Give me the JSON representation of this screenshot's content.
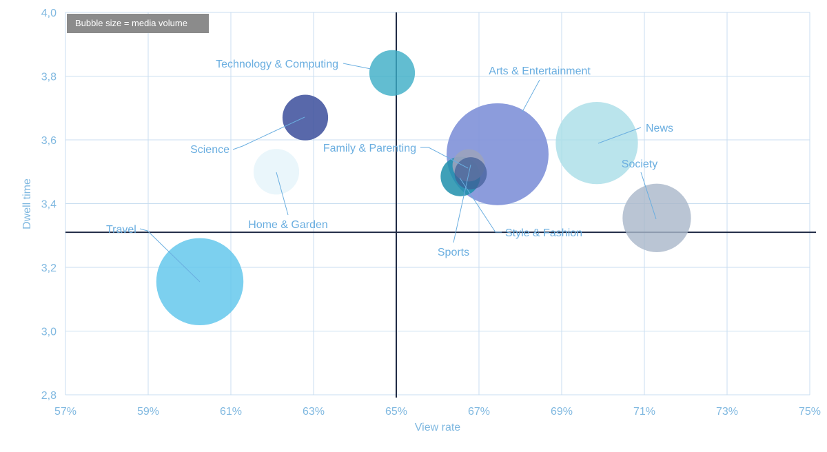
{
  "note": "Bubble size = media volume",
  "chart_data": {
    "type": "scatter",
    "xlabel": "View rate",
    "ylabel": "Dwell time",
    "xlim": [
      57,
      75
    ],
    "ylim": [
      2.8,
      4.0
    ],
    "x_ticks": [
      "57%",
      "59%",
      "61%",
      "63%",
      "65%",
      "67%",
      "69%",
      "71%",
      "73%",
      "75%"
    ],
    "y_ticks": [
      "2,8",
      "3,0",
      "3,2",
      "3,4",
      "3,6",
      "3,8",
      "4,0"
    ],
    "crosshair": {
      "x": 65,
      "y": 3.31
    },
    "grid": true,
    "series": [
      {
        "name": "Arts & Entertainment",
        "x": 67.45,
        "y": 3.555,
        "size": 1.0,
        "color": "#8294d9",
        "opacity": 0.92
      },
      {
        "name": "News",
        "x": 69.85,
        "y": 3.59,
        "size": 0.65,
        "color": "#a9dde7",
        "opacity": 0.8
      },
      {
        "name": "Society",
        "x": 71.3,
        "y": 3.355,
        "size": 0.45,
        "color": "#a9b6c9",
        "opacity": 0.8
      },
      {
        "name": "Travel",
        "x": 60.25,
        "y": 3.155,
        "size": 0.73,
        "color": "#5fc6ec",
        "opacity": 0.82
      },
      {
        "name": "Technology & Computing",
        "x": 64.9,
        "y": 3.81,
        "size": 0.2,
        "color": "#3badc6",
        "opacity": 0.8
      },
      {
        "name": "Science",
        "x": 62.8,
        "y": 3.67,
        "size": 0.2,
        "color": "#3b4d9b",
        "opacity": 0.85
      },
      {
        "name": "Home & Garden",
        "x": 62.1,
        "y": 3.5,
        "size": 0.2,
        "color": "#dcf0f8",
        "opacity": 0.6
      },
      {
        "name": "Family & Parenting",
        "x": 66.75,
        "y": 3.52,
        "size": 0.1,
        "color": "#9ba3bc",
        "opacity": 0.9
      },
      {
        "name": "Sports",
        "x": 66.55,
        "y": 3.485,
        "size": 0.15,
        "color": "#1f8fac",
        "opacity": 0.85
      },
      {
        "name": "Style & Fashion",
        "x": 66.8,
        "y": 3.495,
        "size": 0.1,
        "color": "#3e5d96",
        "opacity": 0.7
      }
    ]
  }
}
